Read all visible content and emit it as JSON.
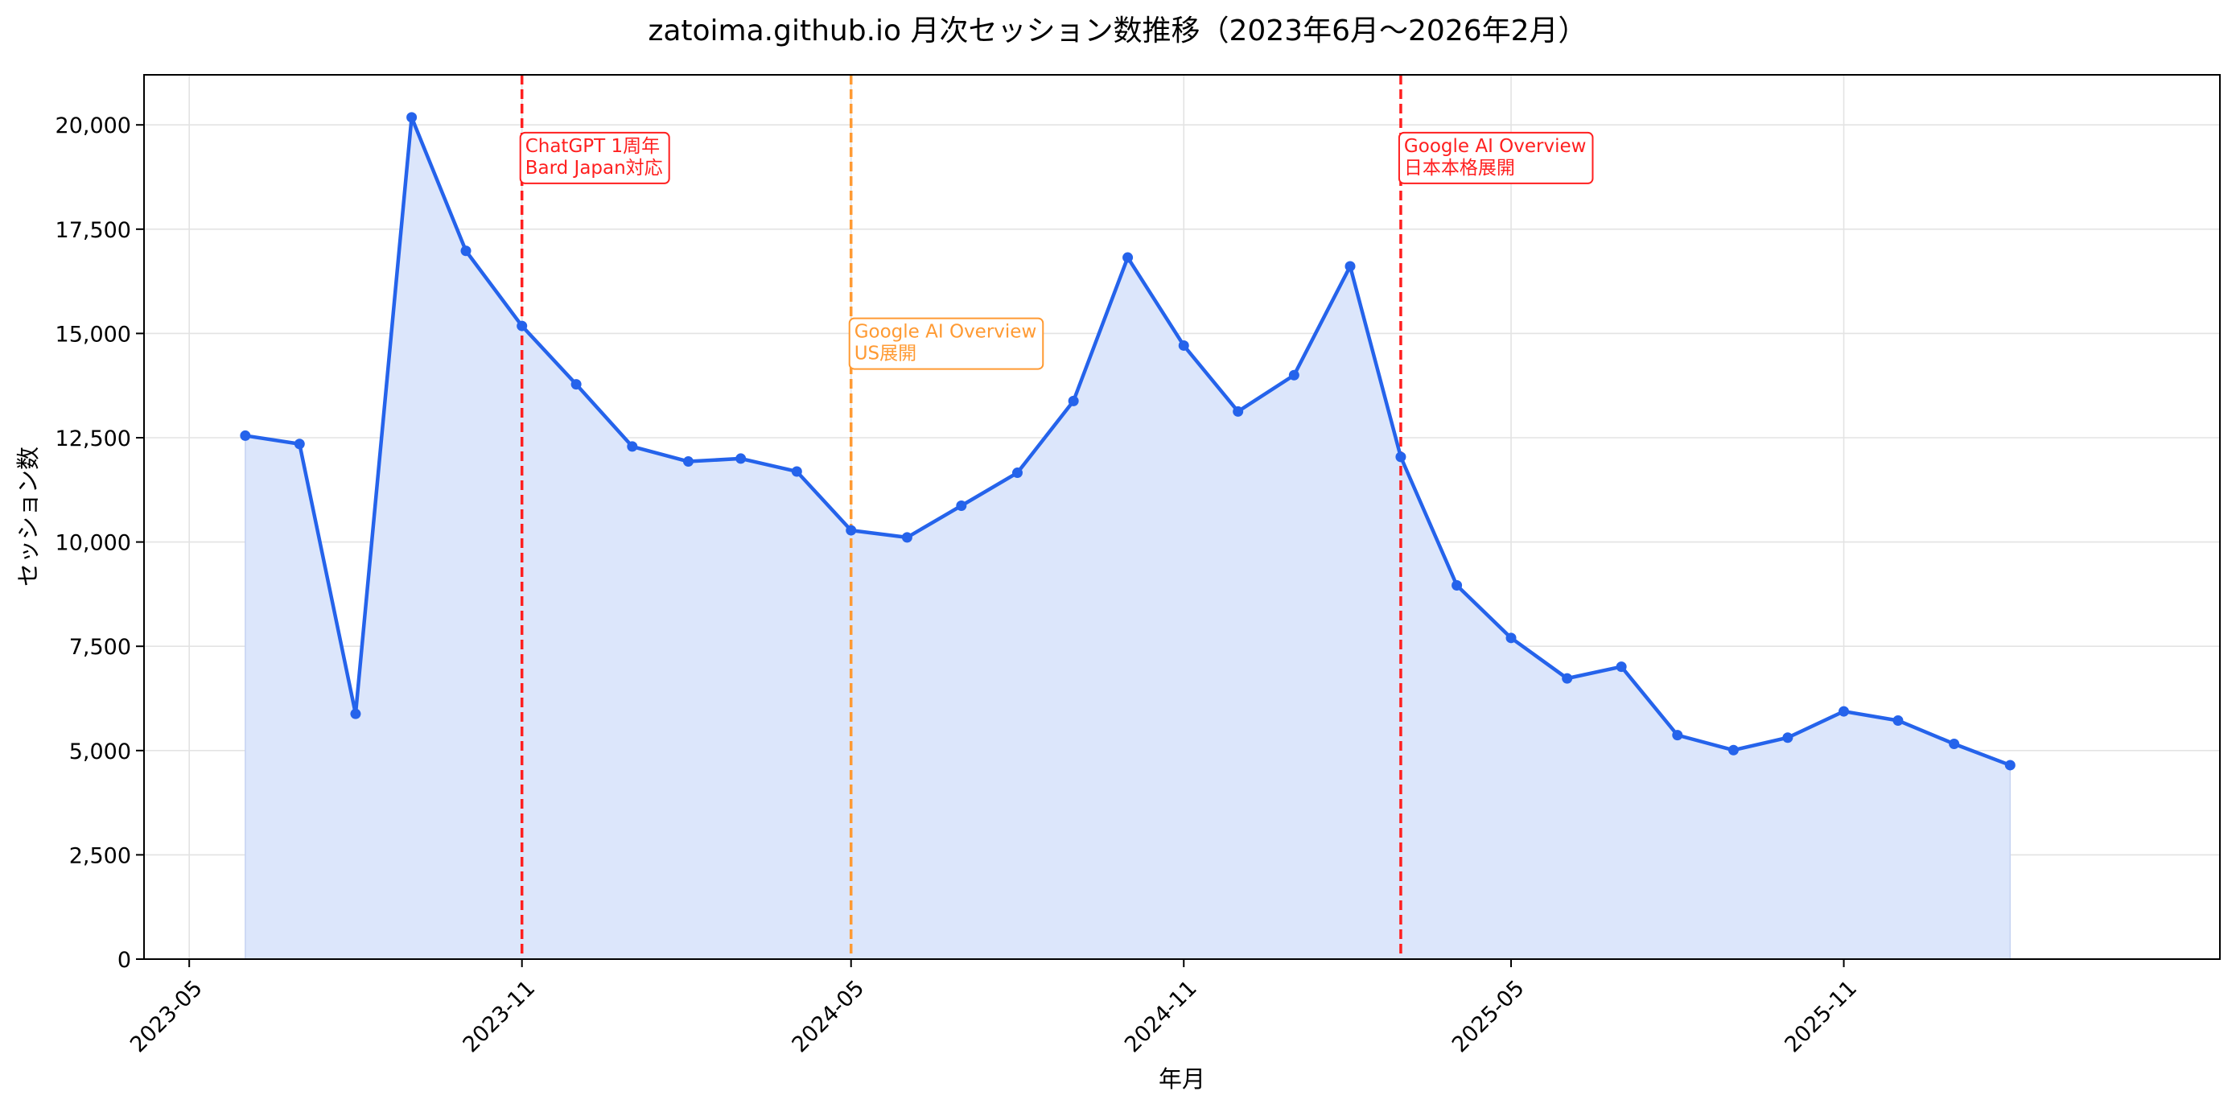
{
  "chart_data": {
    "type": "line",
    "title": "zatoima.github.io 月次セッション数推移（2023年6月〜2026年2月）",
    "xlabel": "年月",
    "ylabel": "セッション数",
    "x_ticks": [
      "2023-05",
      "2023-11",
      "2024-05",
      "2024-11",
      "2025-05",
      "2025-11"
    ],
    "y_ticks": [
      "0",
      "2,500",
      "5,000",
      "7,500",
      "10,000",
      "12,500",
      "15,000",
      "17,500",
      "20,000"
    ],
    "ylim": [
      0,
      21200
    ],
    "xlim": [
      "2023-04-06",
      "2026-05-28"
    ],
    "grid": true,
    "fill_under_line": true,
    "colors": {
      "line": "#2563eb",
      "fill": "#dce6fb",
      "grid": "#e3e3e3",
      "red_event": "#ff1f1f",
      "orange_event": "#ff9a33"
    },
    "series": [
      {
        "x": [
          "2023-06",
          "2023-07",
          "2023-08",
          "2023-09",
          "2023-10",
          "2023-11",
          "2023-12",
          "2024-01",
          "2024-02",
          "2024-03",
          "2024-04",
          "2024-05",
          "2024-06",
          "2024-07",
          "2024-08",
          "2024-09",
          "2024-10",
          "2024-11",
          "2024-12",
          "2025-01",
          "2025-02",
          "2025-03",
          "2025-04",
          "2025-05",
          "2025-06",
          "2025-07",
          "2025-08",
          "2025-09",
          "2025-10",
          "2025-11",
          "2025-12",
          "2026-01",
          "2026-02"
        ],
        "values": [
          12550,
          12350,
          5880,
          20180,
          16980,
          15180,
          13780,
          12290,
          11930,
          12000,
          11690,
          10280,
          10110,
          10870,
          11660,
          13380,
          16820,
          14710,
          13130,
          14000,
          16610,
          12040,
          8960,
          7700,
          6730,
          7010,
          5370,
          5010,
          5310,
          5940,
          5720,
          5160,
          4650
        ]
      }
    ],
    "annotations": [
      {
        "date": "2023-11",
        "lines": [
          "ChatGPT 1周年",
          "Bard Japan対応"
        ],
        "color": "#ff1f1f",
        "text_y_value": 19350
      },
      {
        "date": "2024-05",
        "lines": [
          "Google AI Overview",
          "US展開"
        ],
        "color": "#ff9a33",
        "text_y_value": 14900
      },
      {
        "date": "2025-03",
        "lines": [
          "Google AI Overview",
          "日本本格展開"
        ],
        "color": "#ff1f1f",
        "text_y_value": 19350
      }
    ]
  }
}
